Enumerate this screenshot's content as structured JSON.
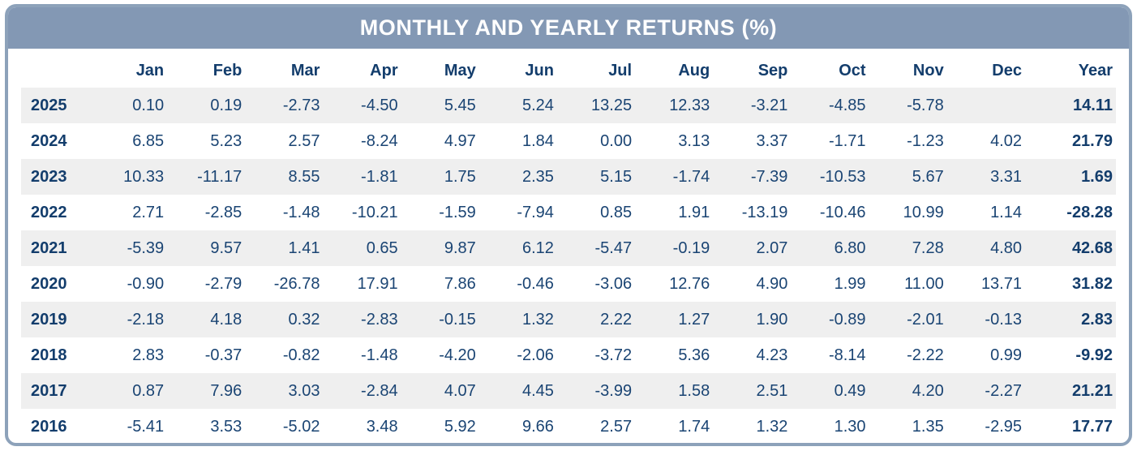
{
  "title": "MONTHLY AND YEARLY RETURNS (%)",
  "colors": {
    "titlebar_bg": "#8398B4",
    "card_border": "#8DA2BA",
    "title_text": "#FFFFFF",
    "header_text": "#133D6C",
    "data_text": "#1A4473",
    "stripe_bg": "#EFEFEF",
    "row_bg": "#FFFFFF"
  },
  "chart_data": {
    "type": "table",
    "title": "MONTHLY AND YEARLY RETURNS (%)",
    "corner_label": "",
    "month_columns": [
      "Jan",
      "Feb",
      "Mar",
      "Apr",
      "May",
      "Jun",
      "Jul",
      "Aug",
      "Sep",
      "Oct",
      "Nov",
      "Dec"
    ],
    "year_column_label": "Year",
    "rows": [
      {
        "year": "2025",
        "monthly": [
          "0.10",
          "0.19",
          "-2.73",
          "-4.50",
          "5.45",
          "5.24",
          "13.25",
          "12.33",
          "-3.21",
          "-4.85",
          "-5.78",
          ""
        ],
        "yearly": "14.11"
      },
      {
        "year": "2024",
        "monthly": [
          "6.85",
          "5.23",
          "2.57",
          "-8.24",
          "4.97",
          "1.84",
          "0.00",
          "3.13",
          "3.37",
          "-1.71",
          "-1.23",
          "4.02"
        ],
        "yearly": "21.79"
      },
      {
        "year": "2023",
        "monthly": [
          "10.33",
          "-11.17",
          "8.55",
          "-1.81",
          "1.75",
          "2.35",
          "5.15",
          "-1.74",
          "-7.39",
          "-10.53",
          "5.67",
          "3.31"
        ],
        "yearly": "1.69"
      },
      {
        "year": "2022",
        "monthly": [
          "2.71",
          "-2.85",
          "-1.48",
          "-10.21",
          "-1.59",
          "-7.94",
          "0.85",
          "1.91",
          "-13.19",
          "-10.46",
          "10.99",
          "1.14"
        ],
        "yearly": "-28.28"
      },
      {
        "year": "2021",
        "monthly": [
          "-5.39",
          "9.57",
          "1.41",
          "0.65",
          "9.87",
          "6.12",
          "-5.47",
          "-0.19",
          "2.07",
          "6.80",
          "7.28",
          "4.80"
        ],
        "yearly": "42.68"
      },
      {
        "year": "2020",
        "monthly": [
          "-0.90",
          "-2.79",
          "-26.78",
          "17.91",
          "7.86",
          "-0.46",
          "-3.06",
          "12.76",
          "4.90",
          "1.99",
          "11.00",
          "13.71"
        ],
        "yearly": "31.82"
      },
      {
        "year": "2019",
        "monthly": [
          "-2.18",
          "4.18",
          "0.32",
          "-2.83",
          "-0.15",
          "1.32",
          "2.22",
          "1.27",
          "1.90",
          "-0.89",
          "-2.01",
          "-0.13"
        ],
        "yearly": "2.83"
      },
      {
        "year": "2018",
        "monthly": [
          "2.83",
          "-0.37",
          "-0.82",
          "-1.48",
          "-4.20",
          "-2.06",
          "-3.72",
          "5.36",
          "4.23",
          "-8.14",
          "-2.22",
          "0.99"
        ],
        "yearly": "-9.92"
      },
      {
        "year": "2017",
        "monthly": [
          "0.87",
          "7.96",
          "3.03",
          "-2.84",
          "4.07",
          "4.45",
          "-3.99",
          "1.58",
          "2.51",
          "0.49",
          "4.20",
          "-2.27"
        ],
        "yearly": "21.21"
      },
      {
        "year": "2016",
        "monthly": [
          "-5.41",
          "3.53",
          "-5.02",
          "3.48",
          "5.92",
          "9.66",
          "2.57",
          "1.74",
          "1.32",
          "1.30",
          "1.35",
          "-2.95"
        ],
        "yearly": "17.77"
      }
    ]
  }
}
